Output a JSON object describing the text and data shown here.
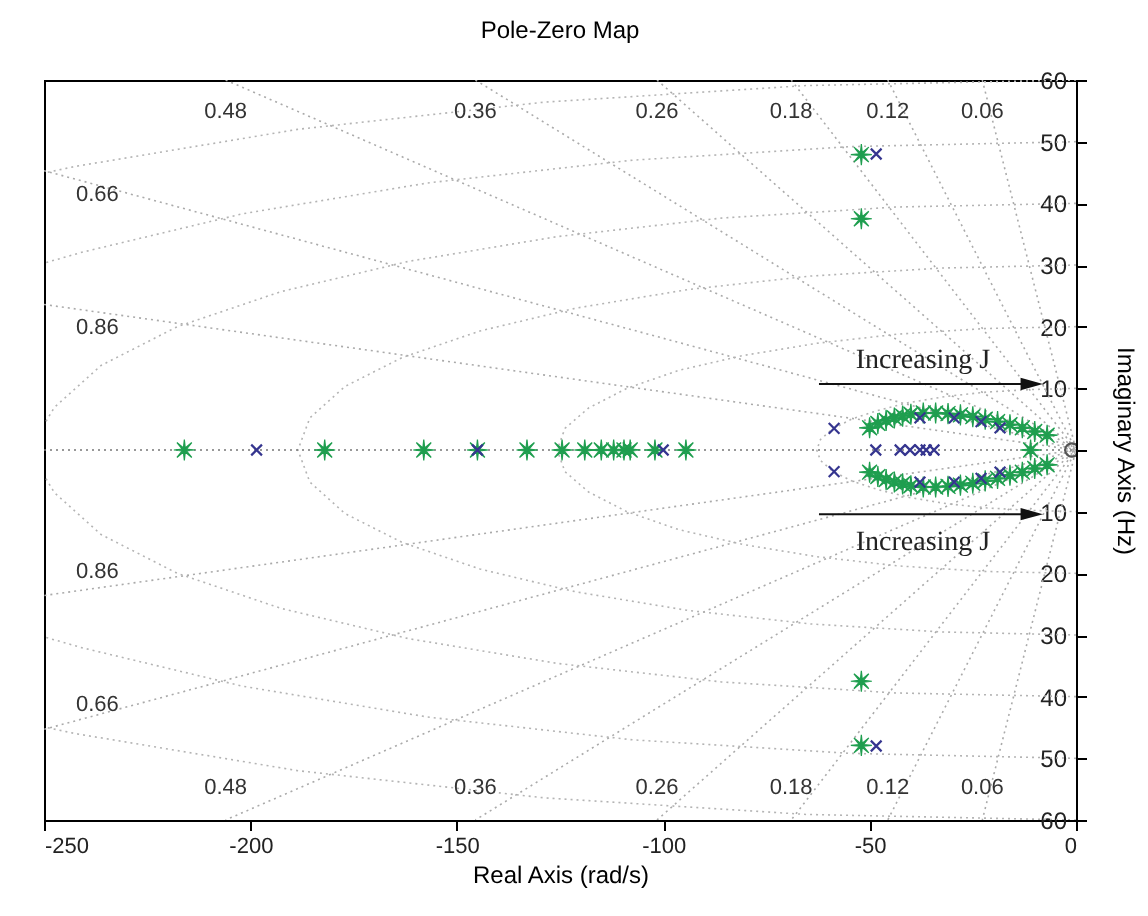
{
  "chart_data": {
    "type": "scatter",
    "title": "Pole-Zero Map",
    "xlabel": "Real Axis (rad/s)",
    "y2label": "Imaginary Axis (Hz)",
    "xlim": [
      -250,
      0
    ],
    "xticks": [
      -250,
      -200,
      -150,
      -100,
      -50,
      0
    ],
    "ylim": [
      -60,
      60
    ],
    "yticks": [
      {
        "value": -60,
        "label": "60"
      },
      {
        "value": -50,
        "label": "50"
      },
      {
        "value": -40,
        "label": "40"
      },
      {
        "value": -30,
        "label": "30"
      },
      {
        "value": -20,
        "label": "20"
      },
      {
        "value": -10,
        "label": "10"
      },
      {
        "value": 0,
        "label": null
      },
      {
        "value": 10,
        "label": "10"
      },
      {
        "value": 20,
        "label": "20"
      },
      {
        "value": 30,
        "label": "30"
      },
      {
        "value": 40,
        "label": "40"
      },
      {
        "value": 50,
        "label": "50"
      },
      {
        "value": 60,
        "label": "60"
      }
    ],
    "series": [
      {
        "type": "line",
        "color": "#aaaaaa",
        "line_style": "dotted",
        "marker": "none",
        "x": [
          -22.7,
          0,
          -22.7
        ],
        "values": [
          60,
          0,
          -60
        ]
      },
      {
        "type": "line",
        "color": "#aaaaaa",
        "line_style": "dotted",
        "marker": "none",
        "x": [
          -45.6,
          0,
          -45.6
        ],
        "values": [
          60,
          0,
          -60
        ]
      },
      {
        "type": "line",
        "color": "#aaaaaa",
        "line_style": "dotted",
        "marker": "none",
        "x": [
          -69,
          0,
          -69
        ],
        "values": [
          60,
          0,
          -60
        ]
      },
      {
        "type": "line",
        "color": "#aaaaaa",
        "line_style": "dotted",
        "marker": "none",
        "x": [
          -101.5,
          0,
          -101.5
        ],
        "values": [
          60,
          0,
          -60
        ]
      },
      {
        "type": "line",
        "color": "#aaaaaa",
        "line_style": "dotted",
        "marker": "none",
        "x": [
          -145.5,
          0,
          -145.5
        ],
        "values": [
          60,
          0,
          -60
        ]
      },
      {
        "type": "line",
        "color": "#aaaaaa",
        "line_style": "dotted",
        "marker": "none",
        "x": [
          -206,
          0,
          -206
        ],
        "values": [
          60,
          0,
          -60
        ]
      },
      {
        "type": "line",
        "color": "#aaaaaa",
        "line_style": "dotted",
        "marker": "none",
        "x": [
          -250,
          0,
          -250
        ],
        "values": [
          45.3,
          0,
          -45.3
        ]
      },
      {
        "type": "line",
        "color": "#aaaaaa",
        "line_style": "dotted",
        "marker": "none",
        "x": [
          -250,
          0,
          -250
        ],
        "values": [
          23.6,
          0,
          -23.6
        ]
      },
      {
        "type": "line",
        "color": "#b4b4b4",
        "line_style": "dotted",
        "marker": "none",
        "x": [
          0,
          -10.9,
          -21.5,
          -31.4,
          -40.4,
          -48.1,
          -54.4,
          -59.0,
          -61.9,
          -62.8,
          -61.9,
          -59.0,
          -54.4,
          -48.1,
          -40.4,
          -31.4,
          -21.5,
          -10.9,
          0
        ],
        "values": [
          10,
          9.8,
          9.4,
          8.7,
          7.7,
          6.4,
          5,
          3.4,
          1.7,
          0,
          -1.7,
          -3.4,
          -5,
          -6.4,
          -7.7,
          -8.7,
          -9.4,
          -9.8,
          -10
        ]
      },
      {
        "type": "line",
        "color": "#b4b4b4",
        "line_style": "dotted",
        "marker": "none",
        "x": [
          0,
          -21.8,
          -43.0,
          -62.8,
          -80.8,
          -96.3,
          -108.8,
          -118.1,
          -123.8,
          -125.7,
          -123.8,
          -118.1,
          -108.8,
          -96.3,
          -80.8,
          -62.8,
          -43.0,
          -21.8,
          0
        ],
        "values": [
          20,
          19.7,
          18.8,
          17.3,
          15.3,
          12.9,
          10,
          6.8,
          3.5,
          0,
          -3.5,
          -6.8,
          -10,
          -12.9,
          -15.3,
          -17.3,
          -18.8,
          -19.7,
          -20
        ]
      },
      {
        "type": "line",
        "color": "#b4b4b4",
        "line_style": "dotted",
        "marker": "none",
        "x": [
          0,
          -32.7,
          -64.5,
          -94.2,
          -121.2,
          -144.4,
          -163.2,
          -177.1,
          -185.6,
          -188.5,
          -185.6,
          -177.1,
          -163.2,
          -144.4,
          -121.2,
          -94.2,
          -64.5,
          -32.7,
          0
        ],
        "values": [
          30,
          29.5,
          28.2,
          26.0,
          23.0,
          19.3,
          15,
          10.3,
          5.2,
          0,
          -5.2,
          -10.3,
          -15,
          -19.3,
          -23.0,
          -26.0,
          -28.2,
          -29.5,
          -30
        ]
      },
      {
        "type": "line",
        "color": "#b4b4b4",
        "line_style": "dotted",
        "marker": "none",
        "x": [
          0,
          -43.6,
          -86.0,
          -125.7,
          -161.6,
          -192.5,
          -217.7,
          -236.2,
          -247.5,
          -250
        ],
        "values": [
          40,
          39.4,
          37.6,
          34.6,
          30.6,
          25.7,
          20,
          13.7,
          6.9,
          4.1
        ]
      },
      {
        "type": "line",
        "color": "#b4b4b4",
        "line_style": "dotted",
        "marker": "none",
        "x": [
          0,
          -43.6,
          -86.0,
          -125.7,
          -161.6,
          -192.5,
          -217.7,
          -236.2,
          -247.5,
          -250
        ],
        "values": [
          -40,
          -39.4,
          -37.6,
          -34.6,
          -30.6,
          -25.7,
          -20,
          -13.7,
          -6.9,
          -4.1
        ]
      },
      {
        "type": "line",
        "color": "#777777",
        "line_style": "dotted",
        "marker": "none",
        "x": [
          -250,
          0
        ],
        "values": [
          0,
          0
        ]
      },
      {
        "type": "line",
        "color": "#b4b4b4",
        "line_style": "dotted",
        "marker": "none",
        "x": [
          0,
          -54.5,
          -107.4,
          -157.1,
          -201.9,
          -240.6,
          -250
        ],
        "values": [
          50,
          49.2,
          47.0,
          43.3,
          38.3,
          32.1,
          30.3
        ]
      },
      {
        "type": "line",
        "color": "#b4b4b4",
        "line_style": "dotted",
        "marker": "none",
        "x": [
          0,
          -54.5,
          -107.4,
          -157.1,
          -201.9,
          -240.6,
          -250
        ],
        "values": [
          -50,
          -49.2,
          -47.0,
          -43.3,
          -38.3,
          -32.1,
          -30.3
        ]
      },
      {
        "type": "line",
        "color": "#b4b4b4",
        "line_style": "dotted",
        "marker": "none",
        "x": [
          0,
          -65.4,
          -128.9,
          -188.5,
          -242.3,
          -250
        ],
        "values": [
          60,
          59.1,
          56.4,
          52.0,
          46.0,
          44.9
        ]
      },
      {
        "type": "line",
        "color": "#b4b4b4",
        "line_style": "dotted",
        "marker": "none",
        "x": [
          0,
          -65.4,
          -128.9,
          -188.5,
          -242.3,
          -250
        ],
        "values": [
          -60,
          -59.1,
          -56.4,
          -52.0,
          -46.0,
          -44.9
        ]
      },
      {
        "type": "scatter",
        "color": "#1f9e4f",
        "marker": "star",
        "x": [
          -216,
          -182,
          -158,
          -145,
          -133,
          -124.5,
          -119,
          -115,
          -112,
          -109.5,
          -108,
          -102,
          -94.5,
          -11,
          -52,
          -52,
          -52,
          -52,
          -50,
          -48,
          -46,
          -44,
          -42,
          -40,
          -37,
          -34,
          -31,
          -28,
          -25,
          -22,
          -19,
          -16,
          -13,
          -10,
          -7,
          -50,
          -48,
          -46,
          -44,
          -42,
          -40,
          -37,
          -34,
          -31,
          -28,
          -25,
          -22,
          -19,
          -16,
          -13,
          -10,
          -7
        ],
        "values": [
          0,
          0,
          0,
          0,
          0,
          0,
          0,
          0,
          0,
          0,
          0,
          0,
          0,
          0,
          47.9,
          37.5,
          -37.5,
          -47.9,
          3.6,
          4.3,
          4.8,
          5.2,
          5.5,
          5.8,
          6,
          6,
          5.9,
          5.7,
          5.4,
          5,
          4.6,
          4.1,
          3.6,
          3,
          2.4,
          -3.6,
          -4.3,
          -4.8,
          -5.2,
          -5.5,
          -5.8,
          -6,
          -6,
          -5.9,
          -5.7,
          -5.4,
          -5,
          -4.6,
          -4.1,
          -3.6,
          -3,
          -2.4
        ]
      },
      {
        "type": "scatter",
        "color": "#35358f",
        "marker": "cross",
        "x": [
          -198.5,
          -145,
          -100,
          -48.5,
          -42.6,
          -40.2,
          -37.8,
          -36.3,
          -34.4,
          -58.6,
          -58.6,
          -37.8,
          -29.5,
          -23,
          -18.4,
          -37.8,
          -29.5,
          -23,
          -18.4,
          -48.4,
          -48.4
        ],
        "values": [
          0,
          0,
          0,
          0,
          0,
          0,
          0,
          0,
          0,
          3.5,
          -3.5,
          5.2,
          5.2,
          4.6,
          3.6,
          -5.2,
          -5.2,
          -4.6,
          -3.6,
          48,
          -48
        ]
      },
      {
        "type": "scatter",
        "color": "#555555",
        "marker": "circle",
        "x": [
          -1
        ],
        "values": [
          0
        ]
      }
    ],
    "annotations": [
      {
        "text": "Increasing J",
        "x": -8,
        "y": 10.7
      },
      {
        "text": "Increasing J",
        "x": -8,
        "y": -10.4
      },
      "0.06",
      "0.12",
      "0.18",
      "0.26",
      "0.36",
      "0.48",
      "0.66",
      "0.86",
      "0.06",
      "0.12",
      "0.18",
      "0.26",
      "0.36",
      "0.48",
      "0.66",
      "0.86"
    ]
  }
}
